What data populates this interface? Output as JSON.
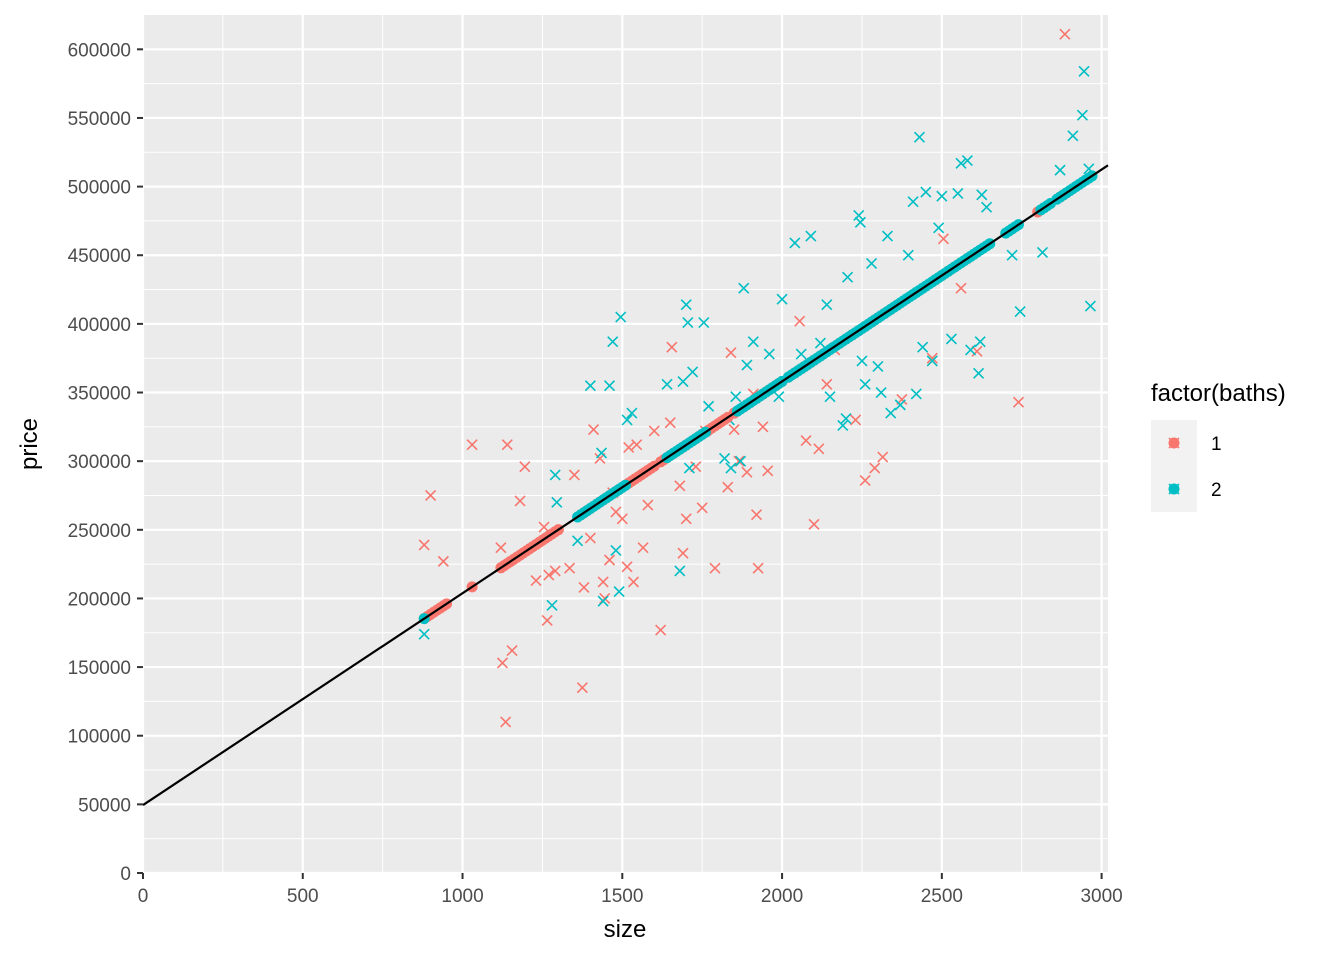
{
  "chart_data": {
    "type": "scatter",
    "title": "",
    "xlabel": "size",
    "ylabel": "price",
    "xlim": [
      0,
      3020
    ],
    "ylim": [
      0,
      625000
    ],
    "x_ticks": [
      0,
      500,
      1000,
      1500,
      2000,
      2500,
      3000
    ],
    "y_ticks": [
      0,
      50000,
      100000,
      150000,
      200000,
      250000,
      300000,
      350000,
      400000,
      450000,
      500000,
      550000,
      600000
    ],
    "grid": true,
    "legend": {
      "title": "factor(baths)",
      "position": "right",
      "entries": [
        {
          "label": "1",
          "color": "#F8766D"
        },
        {
          "label": "2",
          "color": "#00BFC4"
        }
      ]
    },
    "fit_line": {
      "intercept": 49500,
      "slope": 154.3,
      "color": "#000000"
    },
    "series": [
      {
        "name": "1",
        "color": "#F8766D",
        "observed_marker": "x",
        "observed": [
          [
            880,
            239000
          ],
          [
            900,
            275000
          ],
          [
            940,
            227000
          ],
          [
            1030,
            312000
          ],
          [
            1120,
            237000
          ],
          [
            1125,
            153000
          ],
          [
            1135,
            110000
          ],
          [
            1140,
            312000
          ],
          [
            1155,
            162000
          ],
          [
            1180,
            271000
          ],
          [
            1195,
            296000
          ],
          [
            1230,
            213000
          ],
          [
            1255,
            252000
          ],
          [
            1265,
            184000
          ],
          [
            1270,
            217000
          ],
          [
            1290,
            220000
          ],
          [
            1335,
            222000
          ],
          [
            1350,
            290000
          ],
          [
            1375,
            135000
          ],
          [
            1380,
            208000
          ],
          [
            1400,
            244000
          ],
          [
            1410,
            323000
          ],
          [
            1430,
            302000
          ],
          [
            1440,
            212000
          ],
          [
            1445,
            200000
          ],
          [
            1460,
            228000
          ],
          [
            1470,
            277000
          ],
          [
            1480,
            263000
          ],
          [
            1500,
            258000
          ],
          [
            1515,
            223000
          ],
          [
            1520,
            310000
          ],
          [
            1535,
            212000
          ],
          [
            1545,
            312000
          ],
          [
            1565,
            237000
          ],
          [
            1580,
            268000
          ],
          [
            1600,
            322000
          ],
          [
            1620,
            177000
          ],
          [
            1650,
            328000
          ],
          [
            1655,
            383000
          ],
          [
            1680,
            282000
          ],
          [
            1690,
            233000
          ],
          [
            1700,
            258000
          ],
          [
            1730,
            296000
          ],
          [
            1750,
            266000
          ],
          [
            1760,
            322000
          ],
          [
            1790,
            222000
          ],
          [
            1830,
            281000
          ],
          [
            1840,
            379000
          ],
          [
            1850,
            323000
          ],
          [
            1865,
            300000
          ],
          [
            1890,
            292000
          ],
          [
            1910,
            349000
          ],
          [
            1920,
            261000
          ],
          [
            1925,
            222000
          ],
          [
            1940,
            325000
          ],
          [
            1955,
            293000
          ],
          [
            2055,
            402000
          ],
          [
            2075,
            315000
          ],
          [
            2100,
            254000
          ],
          [
            2115,
            309000
          ],
          [
            2140,
            356000
          ],
          [
            2165,
            381000
          ],
          [
            2230,
            330000
          ],
          [
            2260,
            286000
          ],
          [
            2290,
            295000
          ],
          [
            2315,
            303000
          ],
          [
            2375,
            345000
          ],
          [
            2470,
            375000
          ],
          [
            2505,
            462000
          ],
          [
            2560,
            426000
          ],
          [
            2610,
            380000
          ],
          [
            2740,
            343000
          ],
          [
            2885,
            611000
          ]
        ],
        "fitted_x": [
          880,
          890,
          900,
          910,
          920,
          930,
          940,
          950,
          1030,
          1120,
          1130,
          1140,
          1150,
          1160,
          1170,
          1180,
          1190,
          1200,
          1210,
          1220,
          1230,
          1240,
          1250,
          1260,
          1270,
          1280,
          1290,
          1300,
          1370,
          1380,
          1390,
          1400,
          1420,
          1430,
          1440,
          1450,
          1460,
          1480,
          1490,
          1510,
          1520,
          1530,
          1540,
          1550,
          1560,
          1570,
          1580,
          1590,
          1600,
          1620,
          1630,
          1640,
          1650,
          1660,
          1680,
          1690,
          1700,
          1720,
          1730,
          1740,
          1750,
          1760,
          1770,
          1780,
          1790,
          1800,
          1810,
          1820,
          1830,
          1850,
          1860,
          1880,
          1890,
          1900,
          1920,
          1930,
          1940,
          1950,
          1960,
          1970,
          1980,
          1990,
          2000,
          2020,
          2040,
          2060,
          2070,
          2080,
          2090,
          2100,
          2120,
          2140,
          2160,
          2180,
          2200,
          2220,
          2240,
          2260,
          2280,
          2290,
          2300,
          2320,
          2340,
          2360,
          2480,
          2500,
          2520,
          2540,
          2560,
          2580,
          2800,
          2820,
          2870,
          2880,
          2890
        ]
      },
      {
        "name": "2",
        "color": "#00BFC4",
        "observed_marker": "x",
        "observed": [
          [
            880,
            174000
          ],
          [
            1280,
            195000
          ],
          [
            1290,
            290000
          ],
          [
            1295,
            270000
          ],
          [
            1360,
            242000
          ],
          [
            1400,
            355000
          ],
          [
            1435,
            306000
          ],
          [
            1440,
            198000
          ],
          [
            1460,
            355000
          ],
          [
            1470,
            387000
          ],
          [
            1480,
            235000
          ],
          [
            1490,
            205000
          ],
          [
            1495,
            405000
          ],
          [
            1515,
            330000
          ],
          [
            1530,
            335000
          ],
          [
            1640,
            356000
          ],
          [
            1680,
            220000
          ],
          [
            1690,
            358000
          ],
          [
            1700,
            414000
          ],
          [
            1705,
            401000
          ],
          [
            1710,
            295000
          ],
          [
            1720,
            365000
          ],
          [
            1755,
            401000
          ],
          [
            1770,
            340000
          ],
          [
            1820,
            302000
          ],
          [
            1835,
            330000
          ],
          [
            1840,
            295000
          ],
          [
            1855,
            347000
          ],
          [
            1870,
            300000
          ],
          [
            1880,
            426000
          ],
          [
            1890,
            370000
          ],
          [
            1910,
            387000
          ],
          [
            1960,
            378000
          ],
          [
            1990,
            347000
          ],
          [
            2000,
            418000
          ],
          [
            2040,
            459000
          ],
          [
            2060,
            378000
          ],
          [
            2090,
            464000
          ],
          [
            2120,
            386000
          ],
          [
            2140,
            414000
          ],
          [
            2150,
            347000
          ],
          [
            2190,
            326000
          ],
          [
            2200,
            331000
          ],
          [
            2205,
            434000
          ],
          [
            2240,
            479000
          ],
          [
            2245,
            474000
          ],
          [
            2250,
            373000
          ],
          [
            2260,
            356000
          ],
          [
            2280,
            444000
          ],
          [
            2300,
            369000
          ],
          [
            2310,
            350000
          ],
          [
            2330,
            464000
          ],
          [
            2340,
            335000
          ],
          [
            2370,
            341000
          ],
          [
            2395,
            450000
          ],
          [
            2410,
            489000
          ],
          [
            2420,
            349000
          ],
          [
            2430,
            536000
          ],
          [
            2440,
            383000
          ],
          [
            2450,
            496000
          ],
          [
            2470,
            373000
          ],
          [
            2490,
            470000
          ],
          [
            2500,
            493000
          ],
          [
            2530,
            389000
          ],
          [
            2550,
            495000
          ],
          [
            2560,
            517000
          ],
          [
            2580,
            519000
          ],
          [
            2590,
            381000
          ],
          [
            2615,
            364000
          ],
          [
            2620,
            387000
          ],
          [
            2625,
            494000
          ],
          [
            2640,
            485000
          ],
          [
            2720,
            450000
          ],
          [
            2745,
            409000
          ],
          [
            2815,
            452000
          ],
          [
            2870,
            512000
          ],
          [
            2910,
            537000
          ],
          [
            2940,
            552000
          ],
          [
            2945,
            584000
          ],
          [
            2960,
            513000
          ],
          [
            2965,
            413000
          ]
        ],
        "fitted_x": [
          880,
          1360,
          1370,
          1380,
          1390,
          1400,
          1410,
          1420,
          1430,
          1440,
          1450,
          1460,
          1470,
          1480,
          1490,
          1500,
          1510,
          1640,
          1650,
          1660,
          1670,
          1680,
          1690,
          1700,
          1710,
          1720,
          1730,
          1740,
          1750,
          1760,
          1860,
          1870,
          1880,
          1890,
          1900,
          1910,
          1920,
          1930,
          1940,
          1950,
          1960,
          1970,
          1980,
          1990,
          2000,
          2020,
          2030,
          2040,
          2050,
          2060,
          2070,
          2080,
          2090,
          2100,
          2110,
          2120,
          2130,
          2140,
          2150,
          2160,
          2170,
          2180,
          2190,
          2200,
          2210,
          2220,
          2230,
          2240,
          2250,
          2260,
          2270,
          2280,
          2290,
          2300,
          2310,
          2320,
          2330,
          2340,
          2350,
          2360,
          2370,
          2380,
          2390,
          2400,
          2410,
          2420,
          2430,
          2440,
          2450,
          2460,
          2470,
          2480,
          2490,
          2500,
          2510,
          2520,
          2530,
          2540,
          2550,
          2560,
          2570,
          2580,
          2590,
          2600,
          2610,
          2620,
          2630,
          2640,
          2650,
          2700,
          2710,
          2720,
          2730,
          2740,
          2810,
          2820,
          2830,
          2840,
          2860,
          2870,
          2880,
          2890,
          2900,
          2910,
          2920,
          2930,
          2940,
          2950,
          2960,
          2970
        ]
      }
    ]
  }
}
